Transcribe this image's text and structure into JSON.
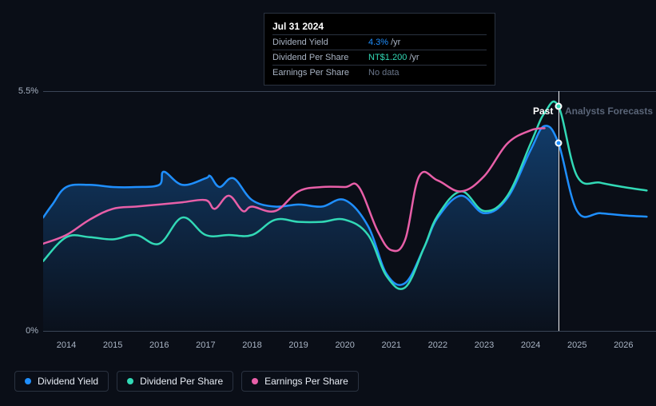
{
  "chart": {
    "type": "line",
    "background_color": "#0a0e17",
    "grid_color": "#3a4556",
    "text_color": "#a9b4c4",
    "ylim": [
      0,
      5.5
    ],
    "y_top_label": "5.5%",
    "y_bottom_label": "0%",
    "years": [
      "2014",
      "2015",
      "2016",
      "2017",
      "2018",
      "2019",
      "2020",
      "2021",
      "2022",
      "2023",
      "2024",
      "2025",
      "2026"
    ],
    "past_label": "Past",
    "forecast_label": "Analysts Forecasts",
    "forecast_boundary_year": 2024.6,
    "hover_year": 2024.6,
    "series": [
      {
        "name": "Dividend Yield",
        "color": "#1f8fff",
        "line_width": 2.5,
        "fill_opacity": 0.25,
        "has_fill": true,
        "points": [
          [
            2013.5,
            2.6
          ],
          [
            2013.7,
            2.9
          ],
          [
            2014,
            3.3
          ],
          [
            2014.5,
            3.35
          ],
          [
            2015,
            3.3
          ],
          [
            2015.5,
            3.3
          ],
          [
            2016,
            3.35
          ],
          [
            2016.1,
            3.65
          ],
          [
            2016.5,
            3.35
          ],
          [
            2017,
            3.5
          ],
          [
            2017.1,
            3.55
          ],
          [
            2017.3,
            3.3
          ],
          [
            2017.6,
            3.5
          ],
          [
            2018,
            3.0
          ],
          [
            2018.5,
            2.85
          ],
          [
            2019,
            2.9
          ],
          [
            2019.5,
            2.85
          ],
          [
            2020,
            3.0
          ],
          [
            2020.5,
            2.4
          ],
          [
            2020.9,
            1.3
          ],
          [
            2021.3,
            1.1
          ],
          [
            2021.7,
            1.9
          ],
          [
            2022,
            2.6
          ],
          [
            2022.5,
            3.1
          ],
          [
            2023,
            2.7
          ],
          [
            2023.5,
            3.05
          ],
          [
            2024,
            4.15
          ],
          [
            2024.3,
            4.7
          ],
          [
            2024.6,
            4.3
          ],
          [
            2025,
            2.75
          ],
          [
            2025.5,
            2.7
          ],
          [
            2026,
            2.65
          ],
          [
            2026.5,
            2.62
          ]
        ]
      },
      {
        "name": "Dividend Per Share",
        "color": "#32d9b6",
        "line_width": 2.5,
        "has_fill": false,
        "points": [
          [
            2013.5,
            1.6
          ],
          [
            2014,
            2.15
          ],
          [
            2014.5,
            2.15
          ],
          [
            2015,
            2.1
          ],
          [
            2015.5,
            2.2
          ],
          [
            2016,
            2.0
          ],
          [
            2016.5,
            2.6
          ],
          [
            2017,
            2.2
          ],
          [
            2017.5,
            2.2
          ],
          [
            2018,
            2.2
          ],
          [
            2018.5,
            2.55
          ],
          [
            2019,
            2.5
          ],
          [
            2019.5,
            2.5
          ],
          [
            2020,
            2.55
          ],
          [
            2020.5,
            2.2
          ],
          [
            2020.9,
            1.25
          ],
          [
            2021.3,
            1.0
          ],
          [
            2021.7,
            1.9
          ],
          [
            2022,
            2.65
          ],
          [
            2022.5,
            3.2
          ],
          [
            2023,
            2.75
          ],
          [
            2023.5,
            3.1
          ],
          [
            2024,
            4.3
          ],
          [
            2024.3,
            5.0
          ],
          [
            2024.6,
            5.15
          ],
          [
            2025,
            3.55
          ],
          [
            2025.5,
            3.4
          ],
          [
            2026,
            3.3
          ],
          [
            2026.5,
            3.22
          ]
        ]
      },
      {
        "name": "Earnings Per Share",
        "color": "#e85fa8",
        "line_width": 2.5,
        "has_fill": false,
        "points": [
          [
            2013.5,
            2.0
          ],
          [
            2014,
            2.2
          ],
          [
            2014.5,
            2.55
          ],
          [
            2015,
            2.8
          ],
          [
            2015.5,
            2.85
          ],
          [
            2016,
            2.9
          ],
          [
            2016.5,
            2.95
          ],
          [
            2017,
            3.0
          ],
          [
            2017.2,
            2.8
          ],
          [
            2017.5,
            3.1
          ],
          [
            2017.8,
            2.75
          ],
          [
            2018,
            2.85
          ],
          [
            2018.5,
            2.75
          ],
          [
            2019,
            3.2
          ],
          [
            2019.5,
            3.3
          ],
          [
            2020,
            3.3
          ],
          [
            2020.3,
            3.3
          ],
          [
            2020.7,
            2.3
          ],
          [
            2021,
            1.85
          ],
          [
            2021.3,
            2.1
          ],
          [
            2021.6,
            3.55
          ],
          [
            2022,
            3.45
          ],
          [
            2022.5,
            3.2
          ],
          [
            2023,
            3.55
          ],
          [
            2023.5,
            4.3
          ],
          [
            2024,
            4.6
          ],
          [
            2024.3,
            4.65
          ]
        ]
      }
    ],
    "hover_markers": [
      {
        "series": "Dividend Per Share",
        "color": "#32d9b6",
        "x": 2024.6,
        "y": 5.15
      },
      {
        "series": "Dividend Yield",
        "color": "#1f8fff",
        "x": 2024.6,
        "y": 4.3
      }
    ]
  },
  "tooltip": {
    "date": "Jul 31 2024",
    "rows": [
      {
        "label": "Dividend Yield",
        "value": "4.3%",
        "suffix": "/yr",
        "value_color": "#1f8fff"
      },
      {
        "label": "Dividend Per Share",
        "value": "NT$1.200",
        "suffix": "/yr",
        "value_color": "#32d9b6"
      },
      {
        "label": "Earnings Per Share",
        "value": "No data",
        "suffix": "",
        "value_color": "#6a768a"
      }
    ]
  },
  "legend": {
    "items": [
      {
        "label": "Dividend Yield",
        "color": "#1f8fff"
      },
      {
        "label": "Dividend Per Share",
        "color": "#32d9b6"
      },
      {
        "label": "Earnings Per Share",
        "color": "#e85fa8"
      }
    ]
  }
}
